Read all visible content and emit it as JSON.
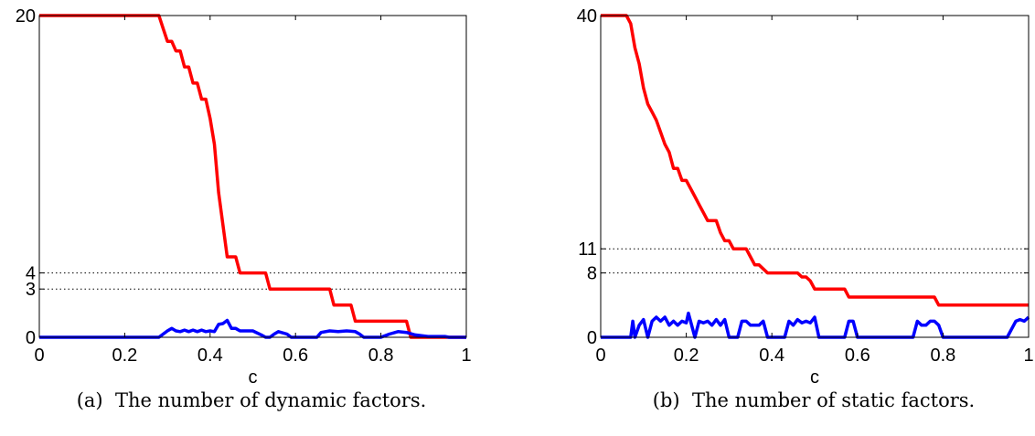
{
  "chart_data": [
    {
      "type": "line",
      "caption": "(a)  The number of dynamic factors.",
      "xlabel": "c",
      "ylabel": "",
      "xlim": [
        0,
        1
      ],
      "ylim": [
        0,
        20
      ],
      "xticks": [
        "0",
        "0.2",
        "0.4",
        "0.6",
        "0.8",
        "1"
      ],
      "yticks": [
        0,
        3,
        4,
        20
      ],
      "hlines": [
        3,
        4
      ],
      "series": [
        {
          "color": "#ff0000",
          "points": [
            [
              0,
              20
            ],
            [
              0.28,
              20
            ],
            [
              0.29,
              19.2
            ],
            [
              0.3,
              18.4
            ],
            [
              0.31,
              18.4
            ],
            [
              0.32,
              17.8
            ],
            [
              0.33,
              17.8
            ],
            [
              0.34,
              16.8
            ],
            [
              0.35,
              16.8
            ],
            [
              0.36,
              15.8
            ],
            [
              0.37,
              15.8
            ],
            [
              0.38,
              14.8
            ],
            [
              0.39,
              14.8
            ],
            [
              0.4,
              13.6
            ],
            [
              0.41,
              12
            ],
            [
              0.42,
              9
            ],
            [
              0.43,
              7
            ],
            [
              0.44,
              5
            ],
            [
              0.45,
              5
            ],
            [
              0.46,
              5
            ],
            [
              0.47,
              4
            ],
            [
              0.53,
              4
            ],
            [
              0.54,
              3
            ],
            [
              0.68,
              3
            ],
            [
              0.69,
              2
            ],
            [
              0.73,
              2
            ],
            [
              0.74,
              1
            ],
            [
              0.86,
              1
            ],
            [
              0.87,
              0
            ],
            [
              1,
              0
            ]
          ]
        },
        {
          "color": "#0000ff",
          "points": [
            [
              0,
              0
            ],
            [
              0.28,
              0
            ],
            [
              0.3,
              0.4
            ],
            [
              0.31,
              0.55
            ],
            [
              0.32,
              0.4
            ],
            [
              0.33,
              0.35
            ],
            [
              0.34,
              0.45
            ],
            [
              0.35,
              0.35
            ],
            [
              0.36,
              0.45
            ],
            [
              0.37,
              0.35
            ],
            [
              0.38,
              0.45
            ],
            [
              0.39,
              0.35
            ],
            [
              0.4,
              0.4
            ],
            [
              0.41,
              0.35
            ],
            [
              0.42,
              0.8
            ],
            [
              0.43,
              0.85
            ],
            [
              0.44,
              1.05
            ],
            [
              0.45,
              0.55
            ],
            [
              0.46,
              0.55
            ],
            [
              0.47,
              0.4
            ],
            [
              0.5,
              0.4
            ],
            [
              0.52,
              0.15
            ],
            [
              0.53,
              0
            ],
            [
              0.54,
              0
            ],
            [
              0.55,
              0.2
            ],
            [
              0.56,
              0.35
            ],
            [
              0.58,
              0.2
            ],
            [
              0.59,
              0
            ],
            [
              0.65,
              0
            ],
            [
              0.66,
              0.3
            ],
            [
              0.68,
              0.4
            ],
            [
              0.7,
              0.35
            ],
            [
              0.72,
              0.4
            ],
            [
              0.74,
              0.35
            ],
            [
              0.75,
              0.2
            ],
            [
              0.76,
              0
            ],
            [
              0.8,
              0
            ],
            [
              0.82,
              0.2
            ],
            [
              0.84,
              0.35
            ],
            [
              0.86,
              0.3
            ],
            [
              0.88,
              0.15
            ],
            [
              0.91,
              0.05
            ],
            [
              0.95,
              0.05
            ],
            [
              0.96,
              0
            ],
            [
              1,
              0
            ]
          ]
        }
      ]
    },
    {
      "type": "line",
      "caption": "(b)  The number of static factors.",
      "xlabel": "c",
      "ylabel": "",
      "xlim": [
        0,
        1
      ],
      "ylim": [
        0,
        40
      ],
      "xticks": [
        "0",
        "0.2",
        "0.4",
        "0.6",
        "0.8",
        "1"
      ],
      "yticks": [
        0,
        8,
        11,
        40
      ],
      "hlines": [
        8,
        11
      ],
      "series": [
        {
          "color": "#ff0000",
          "points": [
            [
              0,
              40
            ],
            [
              0.06,
              40
            ],
            [
              0.07,
              39
            ],
            [
              0.08,
              36
            ],
            [
              0.09,
              34
            ],
            [
              0.1,
              31
            ],
            [
              0.11,
              29
            ],
            [
              0.12,
              28
            ],
            [
              0.13,
              27
            ],
            [
              0.14,
              25.5
            ],
            [
              0.15,
              24
            ],
            [
              0.16,
              23
            ],
            [
              0.17,
              21
            ],
            [
              0.18,
              21
            ],
            [
              0.19,
              19.5
            ],
            [
              0.2,
              19.5
            ],
            [
              0.21,
              18.5
            ],
            [
              0.22,
              17.5
            ],
            [
              0.23,
              16.5
            ],
            [
              0.24,
              15.5
            ],
            [
              0.25,
              14.5
            ],
            [
              0.26,
              14.5
            ],
            [
              0.27,
              14.5
            ],
            [
              0.28,
              13
            ],
            [
              0.29,
              12
            ],
            [
              0.3,
              12
            ],
            [
              0.31,
              11
            ],
            [
              0.34,
              11
            ],
            [
              0.35,
              10
            ],
            [
              0.36,
              9
            ],
            [
              0.37,
              9
            ],
            [
              0.38,
              8.5
            ],
            [
              0.39,
              8
            ],
            [
              0.46,
              8
            ],
            [
              0.47,
              7.5
            ],
            [
              0.48,
              7.5
            ],
            [
              0.49,
              7
            ],
            [
              0.5,
              6
            ],
            [
              0.57,
              6
            ],
            [
              0.58,
              5
            ],
            [
              0.78,
              5
            ],
            [
              0.79,
              4
            ],
            [
              1,
              4
            ]
          ]
        },
        {
          "color": "#0000ff",
          "points": [
            [
              0,
              0
            ],
            [
              0.07,
              0
            ],
            [
              0.075,
              2
            ],
            [
              0.08,
              0
            ],
            [
              0.09,
              1.5
            ],
            [
              0.1,
              2.2
            ],
            [
              0.11,
              0
            ],
            [
              0.12,
              2
            ],
            [
              0.13,
              2.5
            ],
            [
              0.14,
              2
            ],
            [
              0.15,
              2.5
            ],
            [
              0.16,
              1.5
            ],
            [
              0.17,
              2
            ],
            [
              0.18,
              1.5
            ],
            [
              0.19,
              2
            ],
            [
              0.2,
              1.8
            ],
            [
              0.205,
              3
            ],
            [
              0.21,
              2
            ],
            [
              0.22,
              0
            ],
            [
              0.23,
              2
            ],
            [
              0.24,
              1.8
            ],
            [
              0.25,
              2
            ],
            [
              0.26,
              1.5
            ],
            [
              0.27,
              2.2
            ],
            [
              0.28,
              1.5
            ],
            [
              0.29,
              2.2
            ],
            [
              0.3,
              0
            ],
            [
              0.32,
              0
            ],
            [
              0.33,
              2
            ],
            [
              0.34,
              2
            ],
            [
              0.35,
              1.5
            ],
            [
              0.37,
              1.5
            ],
            [
              0.38,
              2
            ],
            [
              0.39,
              0
            ],
            [
              0.43,
              0
            ],
            [
              0.44,
              2
            ],
            [
              0.45,
              1.5
            ],
            [
              0.46,
              2.2
            ],
            [
              0.47,
              1.8
            ],
            [
              0.48,
              2
            ],
            [
              0.49,
              1.8
            ],
            [
              0.5,
              2.5
            ],
            [
              0.51,
              0
            ],
            [
              0.57,
              0
            ],
            [
              0.58,
              2
            ],
            [
              0.59,
              2
            ],
            [
              0.6,
              0
            ],
            [
              0.73,
              0
            ],
            [
              0.74,
              2
            ],
            [
              0.75,
              1.5
            ],
            [
              0.76,
              1.5
            ],
            [
              0.77,
              2
            ],
            [
              0.78,
              2
            ],
            [
              0.79,
              1.5
            ],
            [
              0.8,
              0
            ],
            [
              0.95,
              0
            ],
            [
              0.97,
              2
            ],
            [
              0.98,
              2.2
            ],
            [
              0.99,
              2
            ],
            [
              1,
              2.5
            ]
          ]
        }
      ]
    }
  ]
}
